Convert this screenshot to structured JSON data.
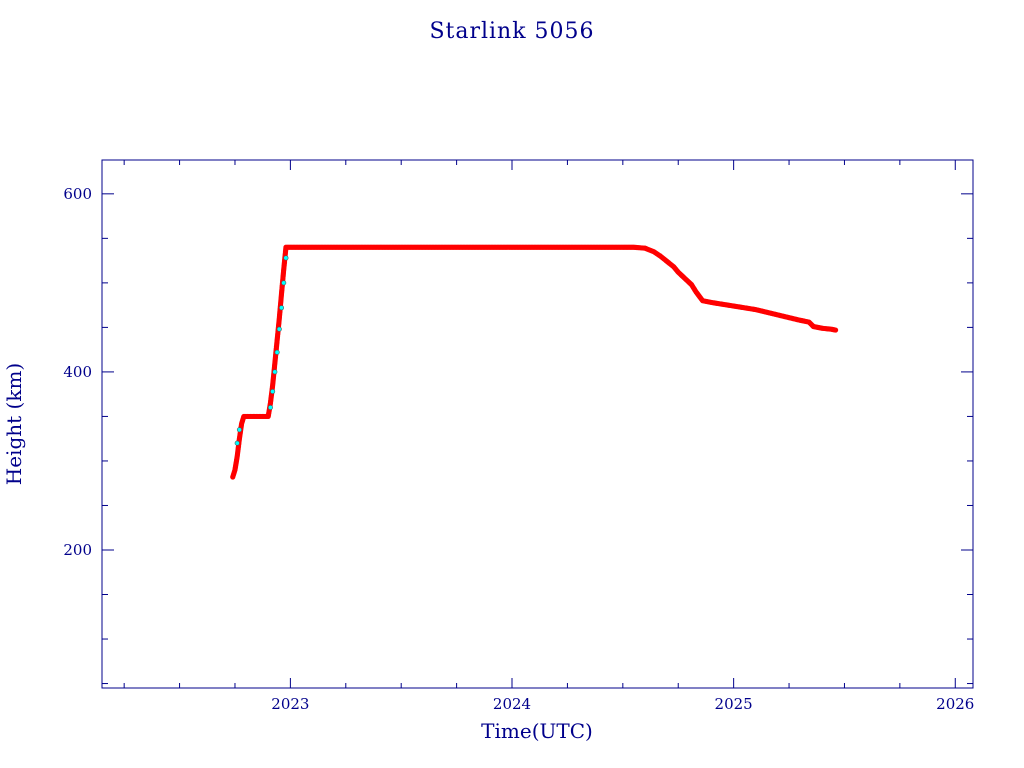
{
  "chart_data": {
    "type": "scatter",
    "title": "Starlink 5056",
    "xlabel": "Time(UTC)",
    "ylabel": "Height (km)",
    "x_tick_labels": [
      "2023",
      "2024",
      "2025",
      "2026"
    ],
    "x_ticks": [
      2023,
      2024,
      2025,
      2026
    ],
    "y_tick_labels": [
      "200",
      "400",
      "600"
    ],
    "y_ticks": [
      200,
      400,
      600
    ],
    "xlim": [
      2022.15,
      2026.08
    ],
    "ylim": [
      45,
      638
    ],
    "grid": false,
    "legend": "none",
    "colors": {
      "axis": "#00008b",
      "primary": "#ff0000",
      "secondary": "#00ffff",
      "secondary_edge": "#555555"
    },
    "series": [
      {
        "color": "#ff0000",
        "points": [
          [
            2022.74,
            282
          ],
          [
            2022.75,
            290
          ],
          [
            2022.76,
            305
          ],
          [
            2022.77,
            325
          ],
          [
            2022.78,
            342
          ],
          [
            2022.79,
            350
          ],
          [
            2022.8,
            350
          ],
          [
            2022.82,
            350
          ],
          [
            2022.84,
            350
          ],
          [
            2022.86,
            350
          ],
          [
            2022.88,
            350
          ],
          [
            2022.9,
            350
          ],
          [
            2022.91,
            365
          ],
          [
            2022.92,
            385
          ],
          [
            2022.93,
            410
          ],
          [
            2022.94,
            435
          ],
          [
            2022.95,
            460
          ],
          [
            2022.96,
            488
          ],
          [
            2022.97,
            515
          ],
          [
            2022.98,
            540
          ],
          [
            2023.0,
            540
          ],
          [
            2023.1,
            540
          ],
          [
            2023.2,
            540
          ],
          [
            2023.3,
            540
          ],
          [
            2023.4,
            540
          ],
          [
            2023.5,
            540
          ],
          [
            2023.6,
            540
          ],
          [
            2023.7,
            540
          ],
          [
            2023.8,
            540
          ],
          [
            2023.9,
            540
          ],
          [
            2024.0,
            540
          ],
          [
            2024.1,
            540
          ],
          [
            2024.2,
            540
          ],
          [
            2024.3,
            540
          ],
          [
            2024.4,
            540
          ],
          [
            2024.5,
            540
          ],
          [
            2024.55,
            540
          ],
          [
            2024.6,
            539
          ],
          [
            2024.64,
            535
          ],
          [
            2024.67,
            530
          ],
          [
            2024.7,
            524
          ],
          [
            2024.73,
            518
          ],
          [
            2024.75,
            512
          ],
          [
            2024.78,
            505
          ],
          [
            2024.81,
            498
          ],
          [
            2024.83,
            490
          ],
          [
            2024.86,
            480
          ],
          [
            2024.9,
            478
          ],
          [
            2024.95,
            476
          ],
          [
            2025.0,
            474
          ],
          [
            2025.05,
            472
          ],
          [
            2025.1,
            470
          ],
          [
            2025.15,
            467
          ],
          [
            2025.2,
            464
          ],
          [
            2025.25,
            461
          ],
          [
            2025.3,
            458
          ],
          [
            2025.34,
            456
          ],
          [
            2025.36,
            451
          ],
          [
            2025.4,
            449
          ],
          [
            2025.44,
            448
          ],
          [
            2025.46,
            447
          ]
        ]
      },
      {
        "color": "#00ffff",
        "points": [
          [
            2022.76,
            320
          ],
          [
            2022.77,
            335
          ],
          [
            2022.91,
            360
          ],
          [
            2022.92,
            378
          ],
          [
            2022.93,
            400
          ],
          [
            2022.94,
            422
          ],
          [
            2022.95,
            448
          ],
          [
            2022.96,
            472
          ],
          [
            2022.97,
            500
          ],
          [
            2022.98,
            528
          ]
        ]
      }
    ]
  }
}
